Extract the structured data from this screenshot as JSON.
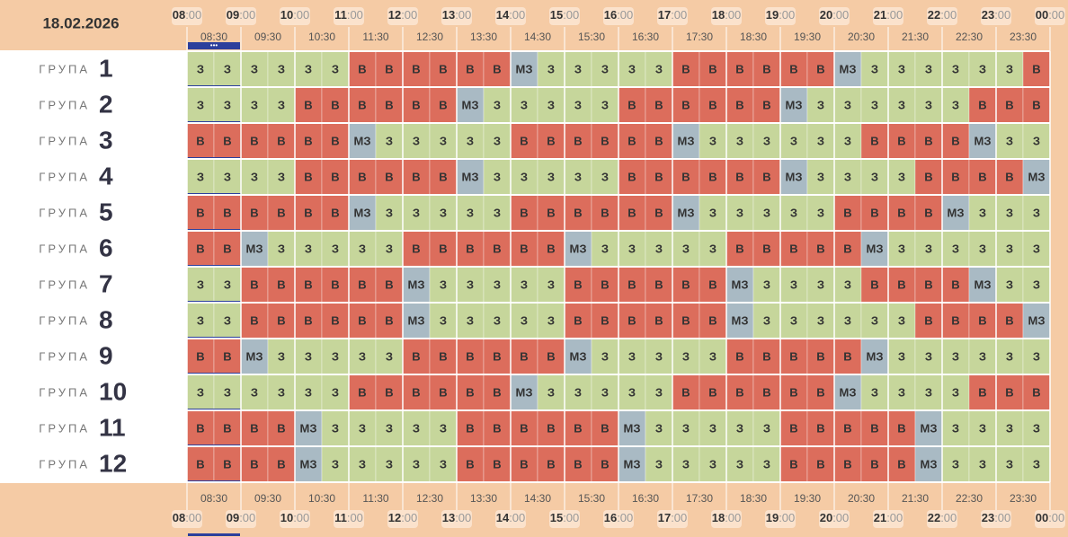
{
  "date": "18.02.2026",
  "hours": [
    {
      "h": "08",
      "m": ":00"
    },
    {
      "h": "09",
      "m": ":00"
    },
    {
      "h": "10",
      "m": ":00"
    },
    {
      "h": "11",
      "m": ":00"
    },
    {
      "h": "12",
      "m": ":00"
    },
    {
      "h": "13",
      "m": ":00"
    },
    {
      "h": "14",
      "m": ":00"
    },
    {
      "h": "15",
      "m": ":00"
    },
    {
      "h": "16",
      "m": ":00"
    },
    {
      "h": "17",
      "m": ":00"
    },
    {
      "h": "18",
      "m": ":00"
    },
    {
      "h": "19",
      "m": ":00"
    },
    {
      "h": "20",
      "m": ":00"
    },
    {
      "h": "21",
      "m": ":00"
    },
    {
      "h": "22",
      "m": ":00"
    },
    {
      "h": "23",
      "m": ":00"
    },
    {
      "h": "00",
      "m": ":00"
    }
  ],
  "half_hours": [
    "08:30",
    "09:30",
    "10:30",
    "11:30",
    "12:30",
    "13:30",
    "14:30",
    "15:30",
    "16:30",
    "17:30",
    "18:30",
    "19:30",
    "20:30",
    "21:30",
    "22:30",
    "23:30"
  ],
  "current_marker": "•••",
  "groups": [
    {
      "label": "ГРУПА",
      "number": "1",
      "slots": [
        "З",
        "З",
        "З",
        "З",
        "З",
        "З",
        "В",
        "В",
        "В",
        "В",
        "В",
        "В",
        "МЗ",
        "З",
        "З",
        "З",
        "З",
        "З",
        "В",
        "В",
        "В",
        "В",
        "В",
        "В",
        "МЗ",
        "З",
        "З",
        "З",
        "З",
        "З",
        "З",
        "В"
      ]
    },
    {
      "label": "ГРУПА",
      "number": "2",
      "slots": [
        "З",
        "З",
        "З",
        "З",
        "В",
        "В",
        "В",
        "В",
        "В",
        "В",
        "МЗ",
        "З",
        "З",
        "З",
        "З",
        "З",
        "В",
        "В",
        "В",
        "В",
        "В",
        "В",
        "МЗ",
        "З",
        "З",
        "З",
        "З",
        "З",
        "З",
        "В",
        "В",
        "В"
      ]
    },
    {
      "label": "ГРУПА",
      "number": "3",
      "slots": [
        "В",
        "В",
        "В",
        "В",
        "В",
        "В",
        "МЗ",
        "З",
        "З",
        "З",
        "З",
        "З",
        "В",
        "В",
        "В",
        "В",
        "В",
        "В",
        "МЗ",
        "З",
        "З",
        "З",
        "З",
        "З",
        "З",
        "В",
        "В",
        "В",
        "В",
        "МЗ",
        "З",
        "З"
      ]
    },
    {
      "label": "ГРУПА",
      "number": "4",
      "slots": [
        "З",
        "З",
        "З",
        "З",
        "В",
        "В",
        "В",
        "В",
        "В",
        "В",
        "МЗ",
        "З",
        "З",
        "З",
        "З",
        "З",
        "В",
        "В",
        "В",
        "В",
        "В",
        "В",
        "МЗ",
        "З",
        "З",
        "З",
        "З",
        "В",
        "В",
        "В",
        "В",
        "МЗ"
      ]
    },
    {
      "label": "ГРУПА",
      "number": "5",
      "slots": [
        "В",
        "В",
        "В",
        "В",
        "В",
        "В",
        "МЗ",
        "З",
        "З",
        "З",
        "З",
        "З",
        "В",
        "В",
        "В",
        "В",
        "В",
        "В",
        "МЗ",
        "З",
        "З",
        "З",
        "З",
        "З",
        "В",
        "В",
        "В",
        "В",
        "МЗ",
        "З",
        "З",
        "З"
      ]
    },
    {
      "label": "ГРУПА",
      "number": "6",
      "slots": [
        "В",
        "В",
        "МЗ",
        "З",
        "З",
        "З",
        "З",
        "З",
        "В",
        "В",
        "В",
        "В",
        "В",
        "В",
        "МЗ",
        "З",
        "З",
        "З",
        "З",
        "З",
        "В",
        "В",
        "В",
        "В",
        "В",
        "МЗ",
        "З",
        "З",
        "З",
        "З",
        "З",
        "З"
      ]
    },
    {
      "label": "ГРУПА",
      "number": "7",
      "slots": [
        "З",
        "З",
        "В",
        "В",
        "В",
        "В",
        "В",
        "В",
        "МЗ",
        "З",
        "З",
        "З",
        "З",
        "З",
        "В",
        "В",
        "В",
        "В",
        "В",
        "В",
        "МЗ",
        "З",
        "З",
        "З",
        "З",
        "В",
        "В",
        "В",
        "В",
        "МЗ",
        "З",
        "З"
      ]
    },
    {
      "label": "ГРУПА",
      "number": "8",
      "slots": [
        "З",
        "З",
        "В",
        "В",
        "В",
        "В",
        "В",
        "В",
        "МЗ",
        "З",
        "З",
        "З",
        "З",
        "З",
        "В",
        "В",
        "В",
        "В",
        "В",
        "В",
        "МЗ",
        "З",
        "З",
        "З",
        "З",
        "З",
        "З",
        "В",
        "В",
        "В",
        "В",
        "МЗ"
      ]
    },
    {
      "label": "ГРУПА",
      "number": "9",
      "slots": [
        "В",
        "В",
        "МЗ",
        "З",
        "З",
        "З",
        "З",
        "З",
        "В",
        "В",
        "В",
        "В",
        "В",
        "В",
        "МЗ",
        "З",
        "З",
        "З",
        "З",
        "З",
        "В",
        "В",
        "В",
        "В",
        "В",
        "МЗ",
        "З",
        "З",
        "З",
        "З",
        "З",
        "З"
      ]
    },
    {
      "label": "ГРУПА",
      "number": "10",
      "slots": [
        "З",
        "З",
        "З",
        "З",
        "З",
        "З",
        "В",
        "В",
        "В",
        "В",
        "В",
        "В",
        "МЗ",
        "З",
        "З",
        "З",
        "З",
        "З",
        "В",
        "В",
        "В",
        "В",
        "В",
        "В",
        "МЗ",
        "З",
        "З",
        "З",
        "З",
        "В",
        "В",
        "В"
      ]
    },
    {
      "label": "ГРУПА",
      "number": "11",
      "slots": [
        "В",
        "В",
        "В",
        "В",
        "МЗ",
        "З",
        "З",
        "З",
        "З",
        "З",
        "В",
        "В",
        "В",
        "В",
        "В",
        "В",
        "МЗ",
        "З",
        "З",
        "З",
        "З",
        "З",
        "В",
        "В",
        "В",
        "В",
        "В",
        "МЗ",
        "З",
        "З",
        "З",
        "З"
      ]
    },
    {
      "label": "ГРУПА",
      "number": "12",
      "slots": [
        "В",
        "В",
        "В",
        "В",
        "МЗ",
        "З",
        "З",
        "З",
        "З",
        "З",
        "В",
        "В",
        "В",
        "В",
        "В",
        "В",
        "МЗ",
        "З",
        "З",
        "З",
        "З",
        "З",
        "В",
        "В",
        "В",
        "В",
        "В",
        "МЗ",
        "З",
        "З",
        "З",
        "З"
      ]
    }
  ]
}
